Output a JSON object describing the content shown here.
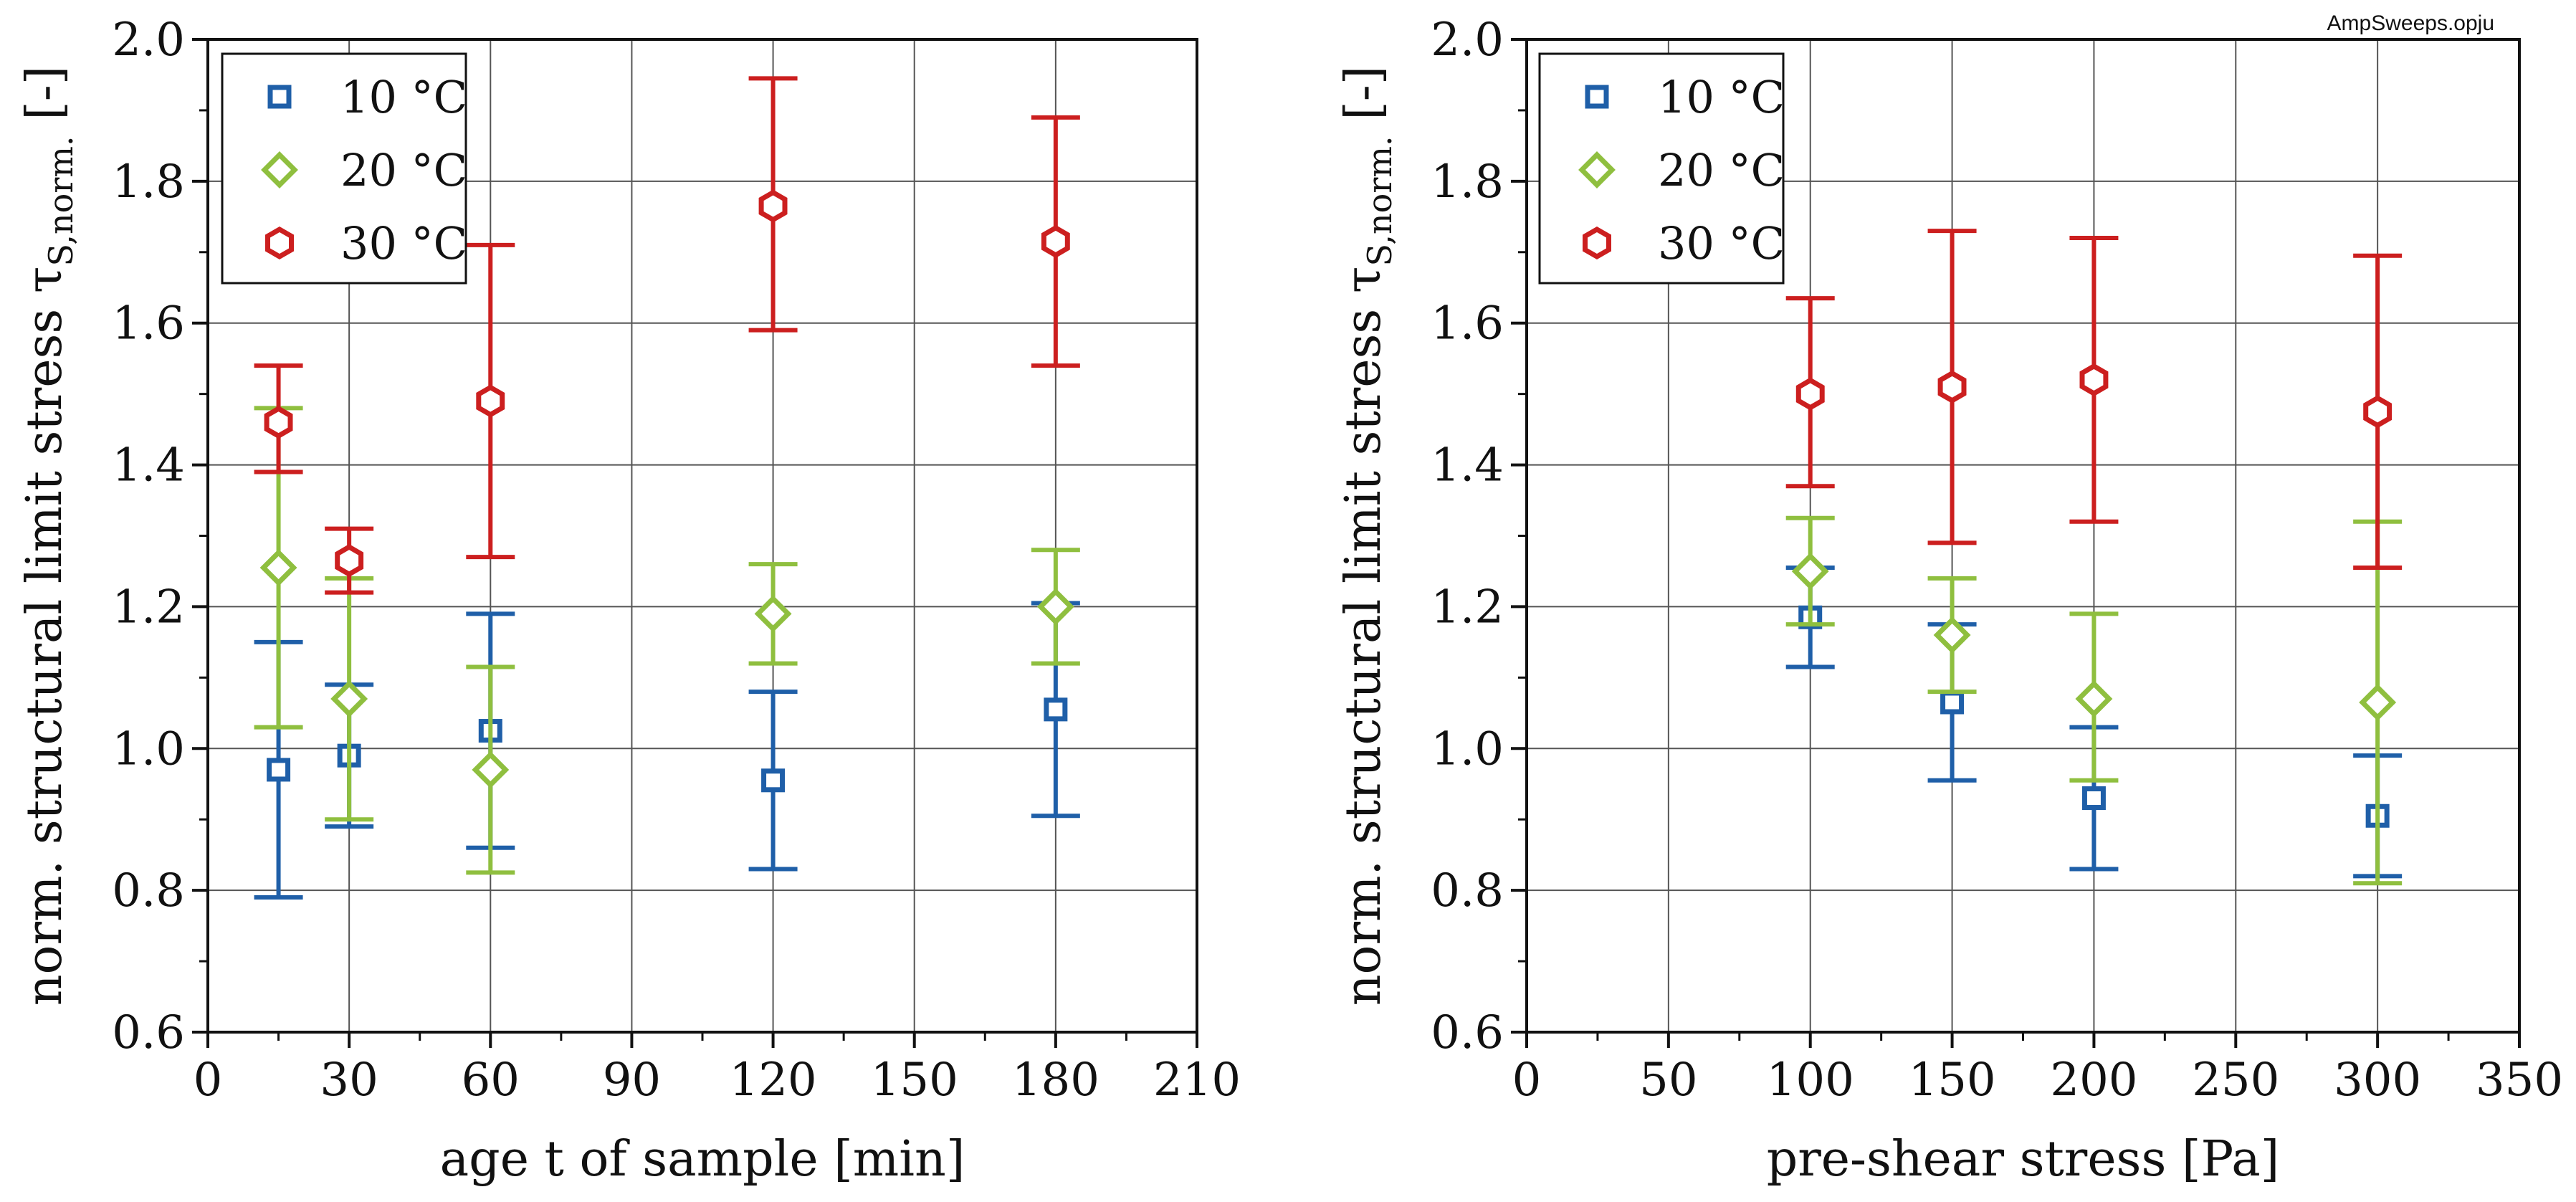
{
  "file_label": "AmpSweeps.opju",
  "colors": {
    "s10": "#1f5fa8",
    "s20": "#8fbf3f",
    "s30": "#cc1f1f",
    "grid": "#555555",
    "axis": "#111111"
  },
  "chart_data": [
    {
      "type": "scatter",
      "title": "",
      "xlabel": "age t of sample [min]",
      "ylabel": "norm. structural limit stress τ",
      "ylabel_sub": "S,norm.",
      "ylabel_unit": "[-]",
      "xlim": [
        0,
        210
      ],
      "ylim": [
        0.6,
        2.0
      ],
      "xticks": [
        0,
        30,
        60,
        90,
        120,
        150,
        180,
        210
      ],
      "yticks": [
        0.6,
        0.8,
        1.0,
        1.2,
        1.4,
        1.6,
        1.8,
        2.0
      ],
      "ytick_labels": [
        "0.6",
        "0.8",
        "1.0",
        "1.2",
        "1.4",
        "1.6",
        "1.8",
        "2.0"
      ],
      "grid": true,
      "legend": "top-left",
      "series": [
        {
          "name": "10 °C",
          "color_key": "s10",
          "marker": "square",
          "points": [
            {
              "x": 15,
              "y": 0.97,
              "lo": 0.79,
              "hi": 1.15
            },
            {
              "x": 30,
              "y": 0.99,
              "lo": 0.89,
              "hi": 1.09
            },
            {
              "x": 60,
              "y": 1.025,
              "lo": 0.86,
              "hi": 1.19
            },
            {
              "x": 120,
              "y": 0.955,
              "lo": 0.83,
              "hi": 1.08
            },
            {
              "x": 180,
              "y": 1.055,
              "lo": 0.905,
              "hi": 1.205
            }
          ]
        },
        {
          "name": "20 °C",
          "color_key": "s20",
          "marker": "diamond",
          "points": [
            {
              "x": 15,
              "y": 1.255,
              "lo": 1.03,
              "hi": 1.48
            },
            {
              "x": 30,
              "y": 1.07,
              "lo": 0.9,
              "hi": 1.24
            },
            {
              "x": 60,
              "y": 0.97,
              "lo": 0.825,
              "hi": 1.115
            },
            {
              "x": 120,
              "y": 1.19,
              "lo": 1.12,
              "hi": 1.26
            },
            {
              "x": 180,
              "y": 1.2,
              "lo": 1.12,
              "hi": 1.28
            }
          ]
        },
        {
          "name": "30 °C",
          "color_key": "s30",
          "marker": "hexagon",
          "points": [
            {
              "x": 15,
              "y": 1.46,
              "lo": 1.39,
              "hi": 1.54
            },
            {
              "x": 30,
              "y": 1.265,
              "lo": 1.22,
              "hi": 1.31
            },
            {
              "x": 60,
              "y": 1.49,
              "lo": 1.27,
              "hi": 1.71
            },
            {
              "x": 120,
              "y": 1.765,
              "lo": 1.59,
              "hi": 1.945
            },
            {
              "x": 180,
              "y": 1.715,
              "lo": 1.54,
              "hi": 1.89
            }
          ]
        }
      ]
    },
    {
      "type": "scatter",
      "title": "",
      "xlabel": "pre-shear stress [Pa]",
      "ylabel": "norm. structural limit stress τ",
      "ylabel_sub": "S,norm.",
      "ylabel_unit": "[-]",
      "xlim": [
        0,
        350
      ],
      "ylim": [
        0.6,
        2.0
      ],
      "xticks": [
        0,
        50,
        100,
        150,
        200,
        250,
        300,
        350
      ],
      "yticks": [
        0.6,
        0.8,
        1.0,
        1.2,
        1.4,
        1.6,
        1.8,
        2.0
      ],
      "ytick_labels": [
        "0.6",
        "0.8",
        "1.0",
        "1.2",
        "1.4",
        "1.6",
        "1.8",
        "2.0"
      ],
      "grid": true,
      "legend": "top-left",
      "series": [
        {
          "name": "10 °C",
          "color_key": "s10",
          "marker": "square",
          "points": [
            {
              "x": 100,
              "y": 1.185,
              "lo": 1.115,
              "hi": 1.255
            },
            {
              "x": 150,
              "y": 1.065,
              "lo": 0.955,
              "hi": 1.175
            },
            {
              "x": 200,
              "y": 0.93,
              "lo": 0.83,
              "hi": 1.03
            },
            {
              "x": 300,
              "y": 0.905,
              "lo": 0.82,
              "hi": 0.99
            }
          ]
        },
        {
          "name": "20 °C",
          "color_key": "s20",
          "marker": "diamond",
          "points": [
            {
              "x": 100,
              "y": 1.25,
              "lo": 1.175,
              "hi": 1.325
            },
            {
              "x": 150,
              "y": 1.16,
              "lo": 1.08,
              "hi": 1.24
            },
            {
              "x": 200,
              "y": 1.07,
              "lo": 0.955,
              "hi": 1.19
            },
            {
              "x": 300,
              "y": 1.065,
              "lo": 0.81,
              "hi": 1.32
            }
          ]
        },
        {
          "name": "30 °C",
          "color_key": "s30",
          "marker": "hexagon",
          "points": [
            {
              "x": 100,
              "y": 1.5,
              "lo": 1.37,
              "hi": 1.635
            },
            {
              "x": 150,
              "y": 1.51,
              "lo": 1.29,
              "hi": 1.73
            },
            {
              "x": 200,
              "y": 1.52,
              "lo": 1.32,
              "hi": 1.72
            },
            {
              "x": 300,
              "y": 1.475,
              "lo": 1.255,
              "hi": 1.695
            }
          ]
        }
      ]
    }
  ]
}
